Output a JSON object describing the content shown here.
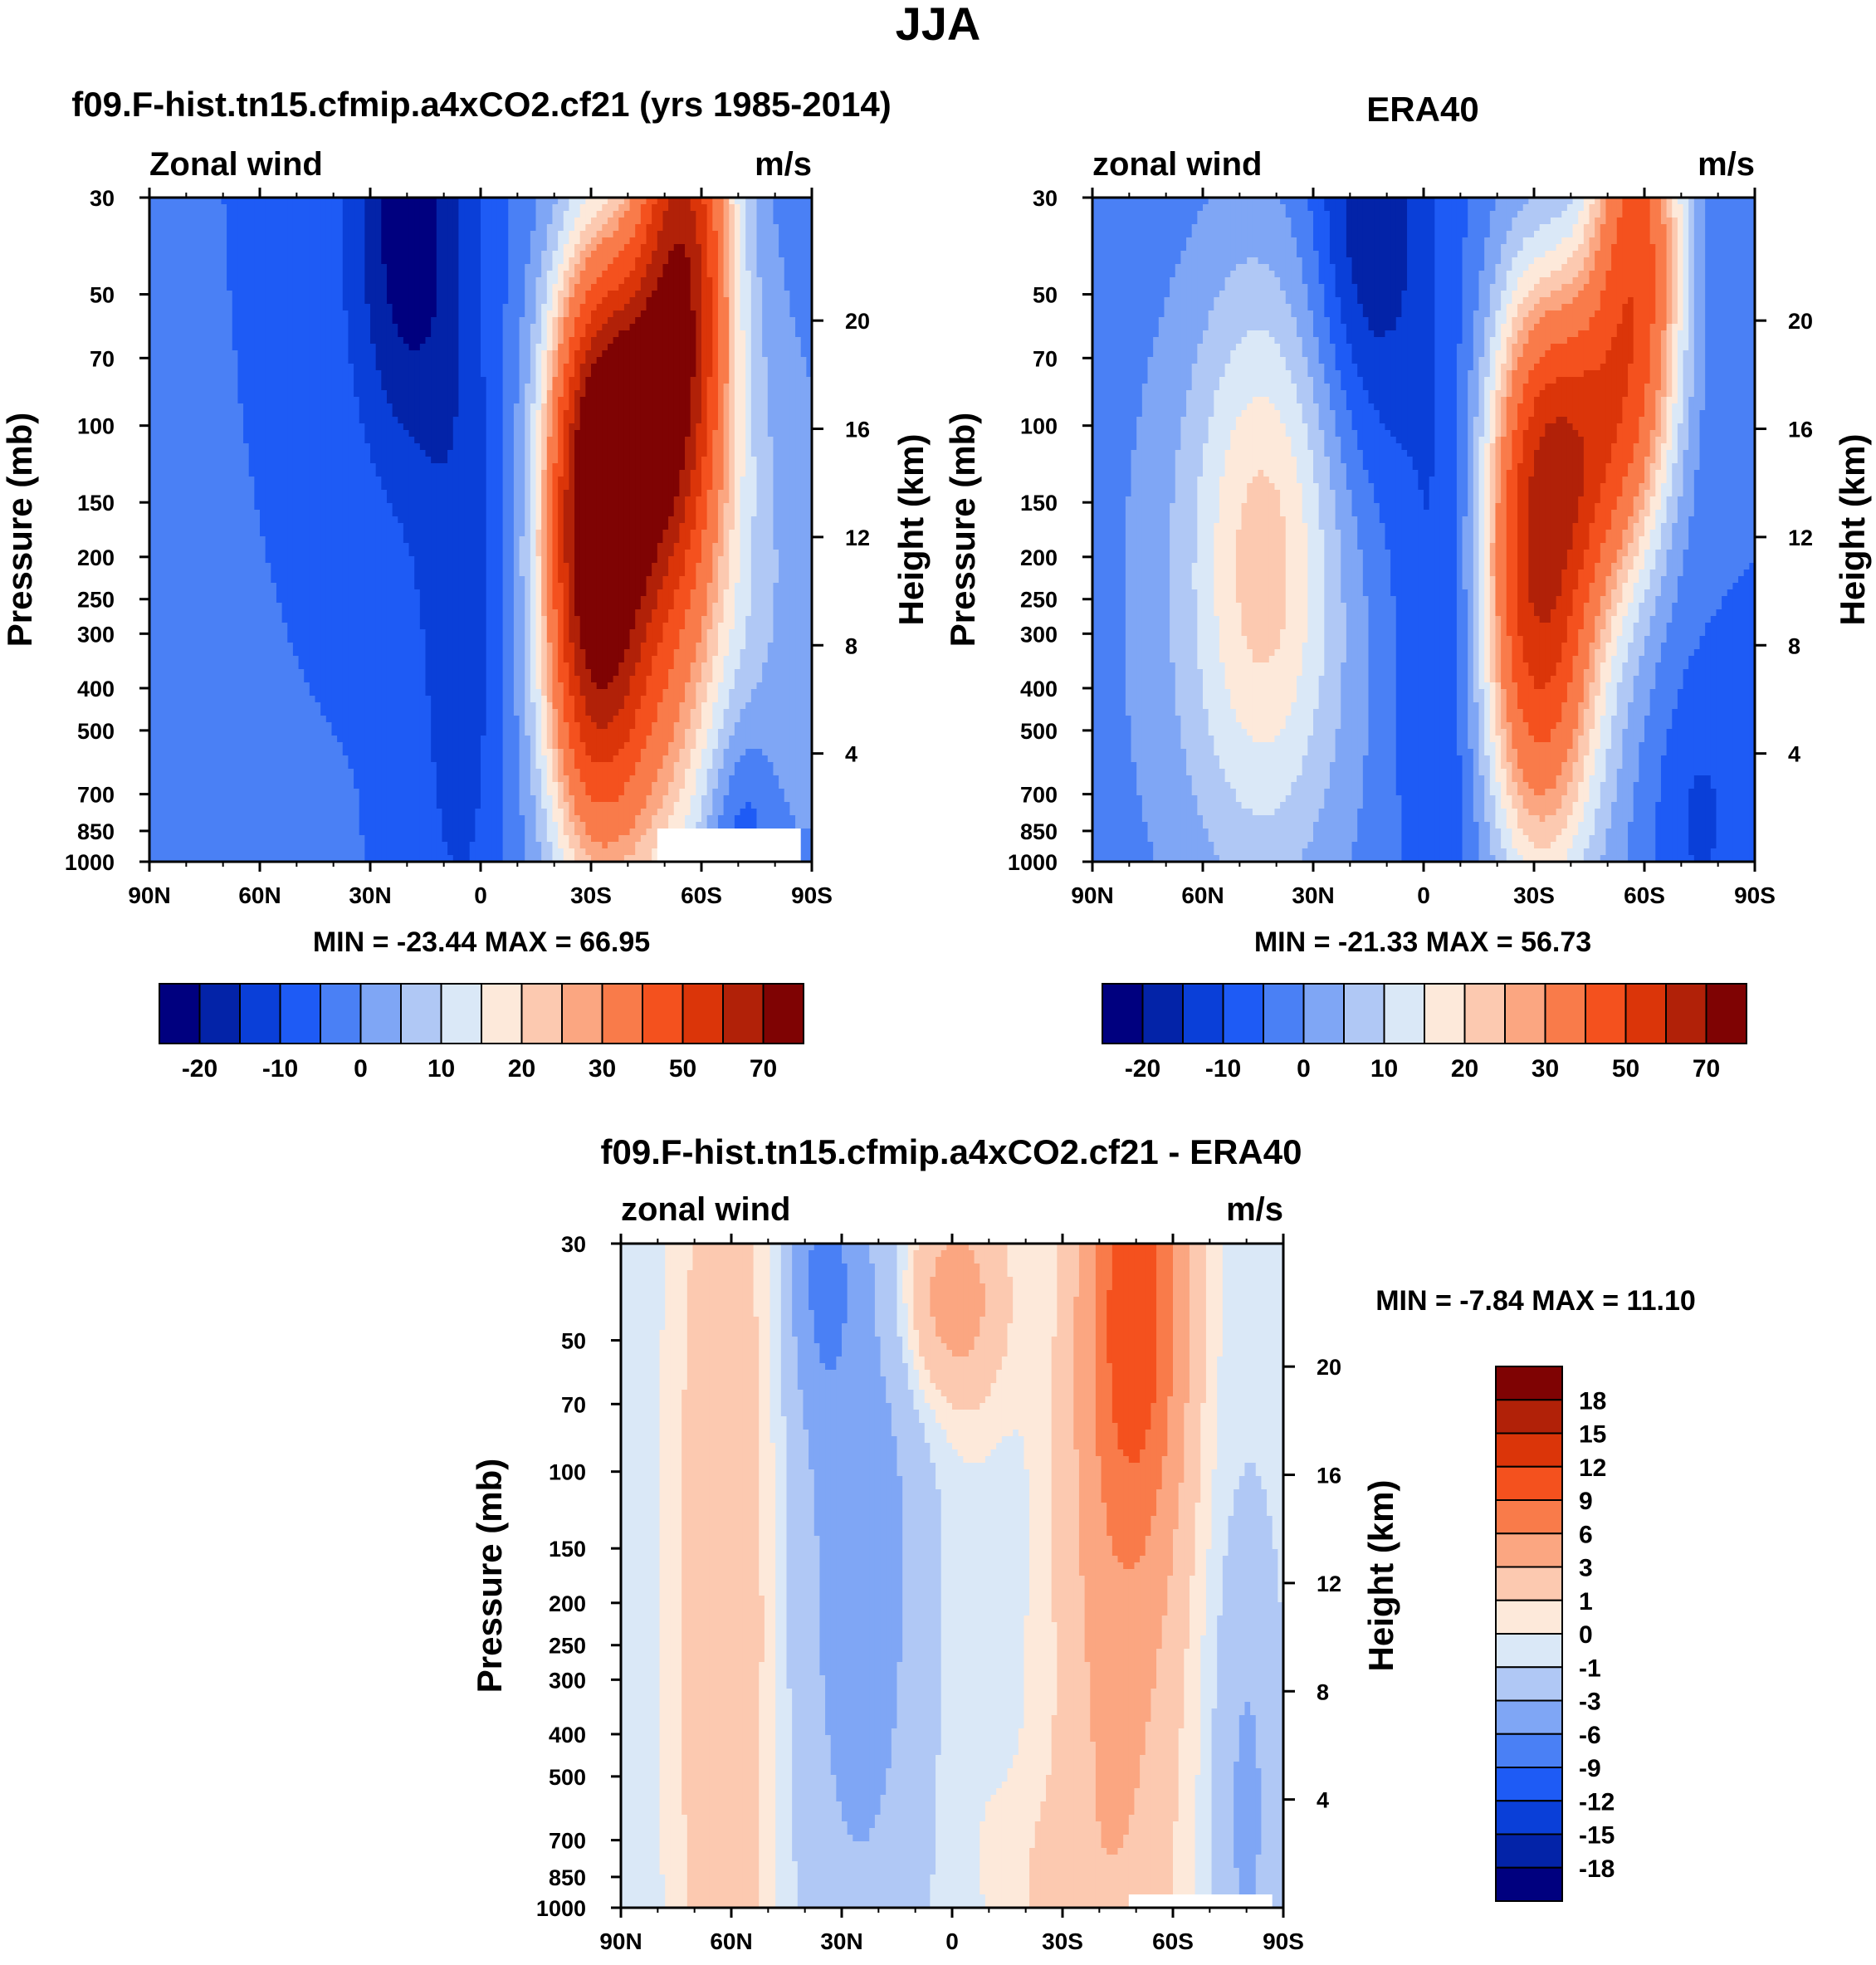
{
  "figure": {
    "title": "JJA"
  },
  "palettes": {
    "abs": [
      "#00007f",
      "#0323a8",
      "#0a3fd8",
      "#1e5bf5",
      "#4a80f5",
      "#7fa6f5",
      "#b0c8f5",
      "#dae8f7",
      "#fde9da",
      "#fcc9b0",
      "#fba681",
      "#f97b4a",
      "#f4511e",
      "#db3509",
      "#b12108",
      "#7f0303"
    ],
    "diff": [
      "#00007f",
      "#0323a8",
      "#0a3fd8",
      "#1e5bf5",
      "#4a80f5",
      "#7fa6f5",
      "#b0c8f5",
      "#dae8f7",
      "#fde9da",
      "#fcc9b0",
      "#fba681",
      "#f97b4a",
      "#f4511e",
      "#db3509",
      "#b12108",
      "#7f0303"
    ]
  },
  "chart_data": [
    {
      "type": "heatmap",
      "title": "f09.F-hist.tn15.cfmip.a4xCO2.cf21 (yrs 1985-2014)",
      "left_label": "Zonal wind",
      "units": "m/s",
      "ylabel": "Pressure (mb)",
      "ylabel_right": "Height (km)",
      "stats": "MIN = -23.44  MAX =  66.95",
      "x_ticks": [
        "90N",
        "60N",
        "30N",
        "0",
        "30S",
        "60S",
        "90S"
      ],
      "y_ticks": [
        30,
        50,
        70,
        100,
        150,
        200,
        250,
        300,
        400,
        500,
        700,
        850,
        1000
      ],
      "height_ticks": [
        20,
        16,
        12,
        8,
        4
      ],
      "xlim": [
        -90,
        90
      ],
      "ylim": [
        1000,
        30
      ],
      "levels": [
        -25,
        -20,
        -15,
        -10,
        -5,
        0,
        5,
        10,
        15,
        20,
        25,
        30,
        40,
        50,
        60,
        70,
        80
      ],
      "colorbar_labels": [
        "-20",
        "-10",
        "0",
        "10",
        "20",
        "30",
        "50",
        "70"
      ],
      "field": {
        "background": -5,
        "features": [
          {
            "lat": -50,
            "p": 200,
            "amp": 22,
            "wl": 14,
            "wz": 1.05
          },
          {
            "lat": -63,
            "p": 280,
            "amp": 9,
            "wl": 32,
            "wz": 1.6
          },
          {
            "lat": 20,
            "p": 35,
            "amp": -18,
            "wl": 11,
            "wz": 0.9
          },
          {
            "lat": 5,
            "p": 300,
            "amp": -9,
            "wl": 9,
            "wz": 1.3
          },
          {
            "lat": -30,
            "p": 180,
            "amp": 61,
            "wl": 9,
            "wz": 1.0
          },
          {
            "lat": -55,
            "p": 38,
            "amp": 58,
            "wl": 9,
            "wz": 0.9
          },
          {
            "lat": -42,
            "p": 100,
            "amp": 43,
            "wl": 11,
            "wz": 0.6
          },
          {
            "lat": -38,
            "p": 420,
            "amp": 18,
            "wl": 13,
            "wz": 0.9
          },
          {
            "lat": -70,
            "p": 900,
            "amp": -12,
            "wl": 7,
            "wz": 0.5
          }
        ]
      },
      "missing_corner": {
        "lat_from": -48,
        "p_from": 850
      }
    },
    {
      "type": "heatmap",
      "title": "ERA40",
      "left_label": "zonal wind",
      "units": "m/s",
      "ylabel": "Pressure (mb)",
      "ylabel_right": "Height (km)",
      "stats": "MIN = -21.33  MAX =  56.73",
      "x_ticks": [
        "90N",
        "60N",
        "30N",
        "0",
        "30S",
        "60S",
        "90S"
      ],
      "y_ticks": [
        30,
        50,
        70,
        100,
        150,
        200,
        250,
        300,
        400,
        500,
        700,
        850,
        1000
      ],
      "height_ticks": [
        20,
        16,
        12,
        8,
        4
      ],
      "xlim": [
        -90,
        90
      ],
      "ylim": [
        1000,
        30
      ],
      "levels": [
        -25,
        -20,
        -15,
        -10,
        -5,
        0,
        5,
        10,
        15,
        20,
        25,
        30,
        40,
        50,
        60,
        70,
        80
      ],
      "colorbar_labels": [
        "-20",
        "-10",
        "0",
        "10",
        "20",
        "30",
        "50",
        "70"
      ],
      "field": {
        "background": -5,
        "features": [
          {
            "lat": 43,
            "p": 200,
            "amp": 20,
            "wl": 14,
            "wz": 1.05
          },
          {
            "lat": 50,
            "p": 280,
            "amp": 8,
            "wl": 30,
            "wz": 1.6
          },
          {
            "lat": 15,
            "p": 35,
            "amp": -16,
            "wl": 11,
            "wz": 0.9
          },
          {
            "lat": -5,
            "p": 300,
            "amp": -8,
            "wl": 9,
            "wz": 1.3
          },
          {
            "lat": -30,
            "p": 200,
            "amp": 50,
            "wl": 10,
            "wz": 1.0
          },
          {
            "lat": -58,
            "p": 40,
            "amp": 48,
            "wl": 9,
            "wz": 0.9
          },
          {
            "lat": -44,
            "p": 110,
            "amp": 36,
            "wl": 11,
            "wz": 0.6
          },
          {
            "lat": -38,
            "p": 420,
            "amp": 16,
            "wl": 13,
            "wz": 0.9
          },
          {
            "lat": -75,
            "p": 800,
            "amp": -6,
            "wl": 8,
            "wz": 0.5
          }
        ]
      },
      "missing_corner": null
    },
    {
      "type": "heatmap",
      "title": "f09.F-hist.tn15.cfmip.a4xCO2.cf21 - ERA40",
      "left_label": "zonal wind",
      "units": "m/s",
      "ylabel": "Pressure (mb)",
      "ylabel_right": "Height (km)",
      "stats": "MIN =  -7.84  MAX =  11.10",
      "x_ticks": [
        "90N",
        "60N",
        "30N",
        "0",
        "30S",
        "60S",
        "90S"
      ],
      "y_ticks": [
        30,
        50,
        70,
        100,
        150,
        200,
        250,
        300,
        400,
        500,
        700,
        850,
        1000
      ],
      "height_ticks": [
        20,
        16,
        12,
        8,
        4
      ],
      "xlim": [
        -90,
        90
      ],
      "ylim": [
        1000,
        30
      ],
      "levels": [
        -21,
        -18,
        -15,
        -12,
        -9,
        -6,
        -3,
        -1,
        0,
        1,
        3,
        6,
        9,
        12,
        15,
        18,
        21
      ],
      "colorbar_labels": [
        "18",
        "15",
        "12",
        "9",
        "6",
        "3",
        "1",
        "0",
        "-1",
        "-3",
        "-6",
        "-9",
        "-12",
        "-15",
        "-18"
      ],
      "field": {
        "background": -0.5,
        "features": [
          {
            "lat": 62,
            "p": 200,
            "amp": 3.5,
            "wl": 9,
            "wz": 2.2
          },
          {
            "lat": 25,
            "p": 150,
            "amp": -4,
            "wl": 12,
            "wz": 1.6
          },
          {
            "lat": 35,
            "p": 35,
            "amp": -5,
            "wl": 6,
            "wz": 0.5
          },
          {
            "lat": 0,
            "p": 40,
            "amp": 5,
            "wl": 10,
            "wz": 0.4
          },
          {
            "lat": -50,
            "p": 40,
            "amp": 10,
            "wl": 9,
            "wz": 0.9
          },
          {
            "lat": -45,
            "p": 250,
            "amp": 4,
            "wl": 12,
            "wz": 1.8
          },
          {
            "lat": -5,
            "p": 300,
            "amp": 0.5,
            "wl": 6,
            "wz": 1.0
          },
          {
            "lat": -80,
            "p": 600,
            "amp": -3,
            "wl": 6,
            "wz": 1.0
          },
          {
            "lat": -25,
            "p": 900,
            "amp": 1.2,
            "wl": 10,
            "wz": 0.4
          }
        ]
      },
      "missing_corner": {
        "lat_from": -48,
        "p_from": 920
      }
    }
  ]
}
